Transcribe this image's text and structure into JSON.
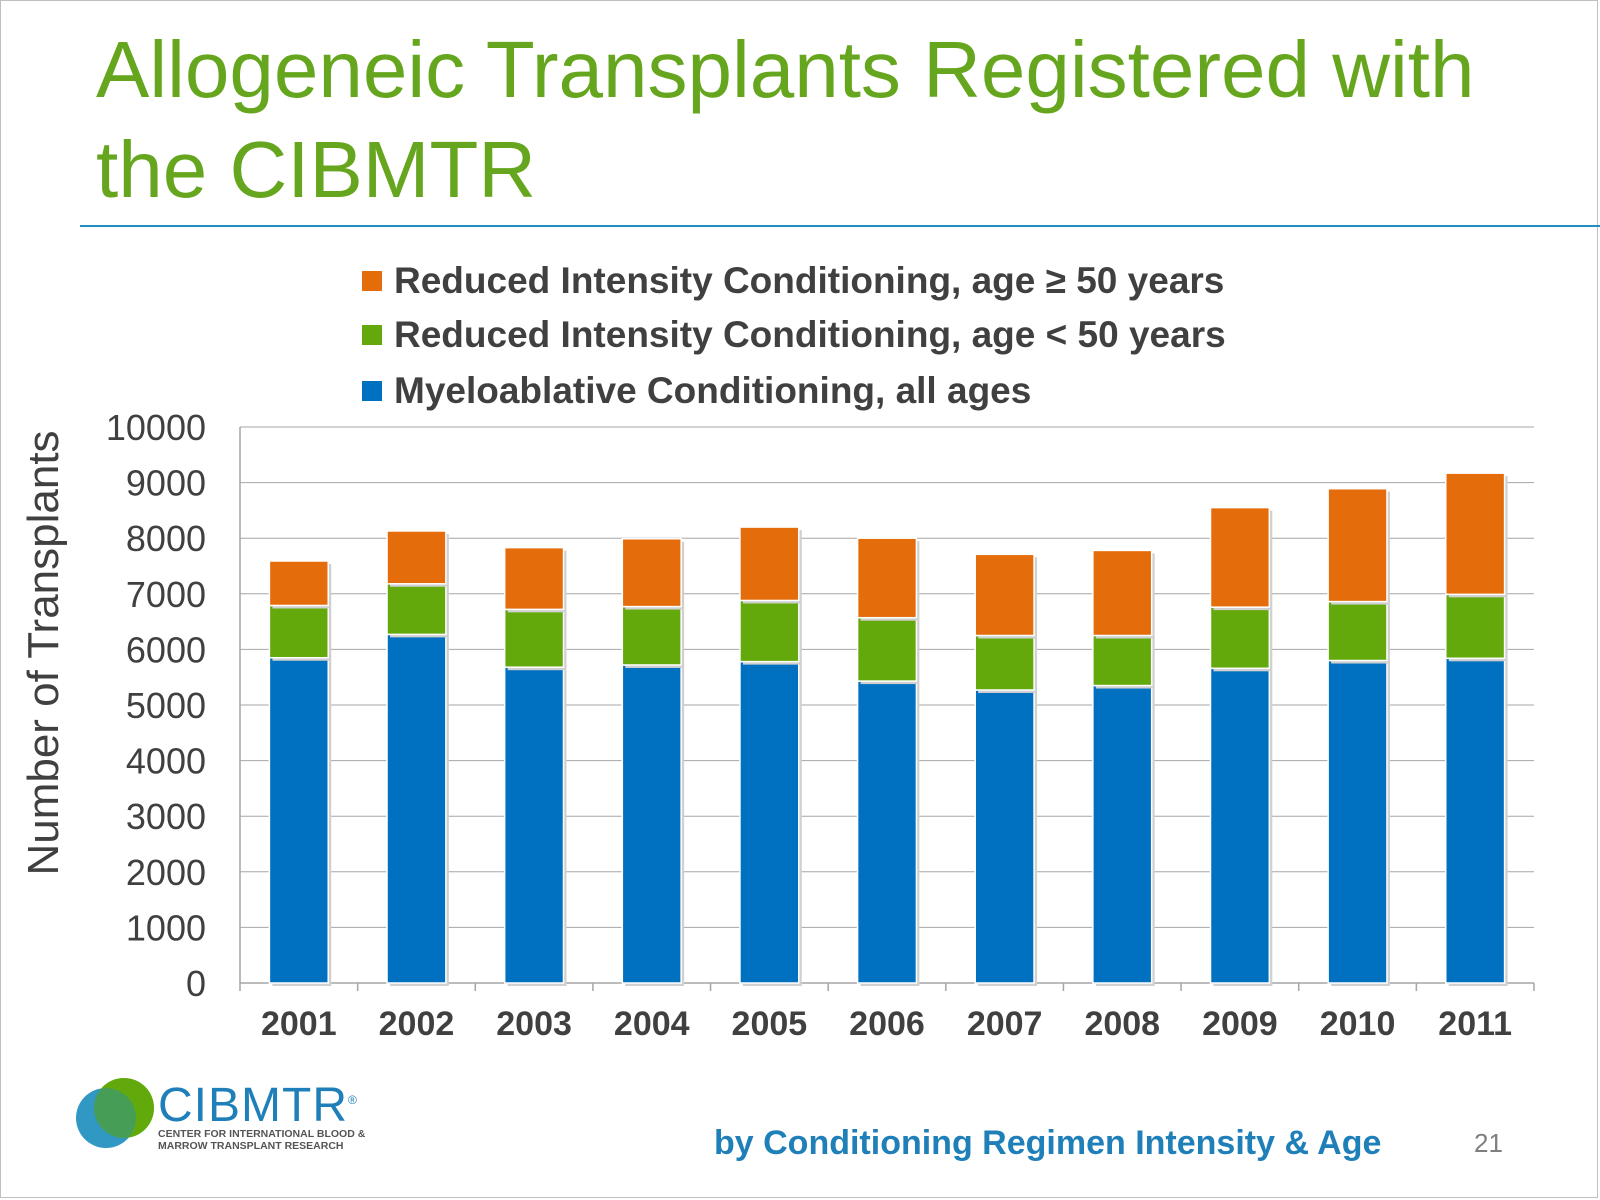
{
  "slide": {
    "title": "Allogeneic Transplants Registered with the CIBMTR",
    "subtitle": "by Conditioning  Regimen Intensity & Age",
    "page_number": "21"
  },
  "logo": {
    "name": "CIBMTR",
    "registered": "®",
    "tagline": "CENTER FOR INTERNATIONAL BLOOD & MARROW TRANSPLANT RESEARCH"
  },
  "colors": {
    "title": "#66a61e",
    "myeloablative": "#0070c0",
    "ric_under_50": "#63a90c",
    "ric_50_plus": "#e46c0a",
    "accent_blue": "#1f7fb8"
  },
  "chart_data": {
    "type": "bar",
    "stacked": true,
    "title": "",
    "xlabel": "",
    "ylabel": "Number of  Transplants",
    "ylim": [
      0,
      10000
    ],
    "yticks": [
      0,
      1000,
      2000,
      3000,
      4000,
      5000,
      6000,
      7000,
      8000,
      9000,
      10000
    ],
    "categories": [
      "2001",
      "2002",
      "2003",
      "2004",
      "2005",
      "2006",
      "2007",
      "2008",
      "2009",
      "2010",
      "2011"
    ],
    "grid": true,
    "legend": "top",
    "series": [
      {
        "name": "Myeloablative Conditioning, all ages",
        "color": "#0070c0",
        "values": [
          5850,
          6270,
          5680,
          5720,
          5780,
          5430,
          5270,
          5350,
          5660,
          5800,
          5840
        ]
      },
      {
        "name": "Reduced Intensity Conditioning, age < 50 years",
        "color": "#63a90c",
        "values": [
          940,
          910,
          1040,
          1050,
          1100,
          1140,
          980,
          900,
          1100,
          1060,
          1150
        ]
      },
      {
        "name": "Reduced Intensity Conditioning, age ≥ 50 years",
        "color": "#e46c0a",
        "values": [
          800,
          950,
          1110,
          1220,
          1320,
          1430,
          1460,
          1530,
          1790,
          2030,
          2180
        ]
      }
    ],
    "legend_order": [
      2,
      1,
      0
    ]
  }
}
